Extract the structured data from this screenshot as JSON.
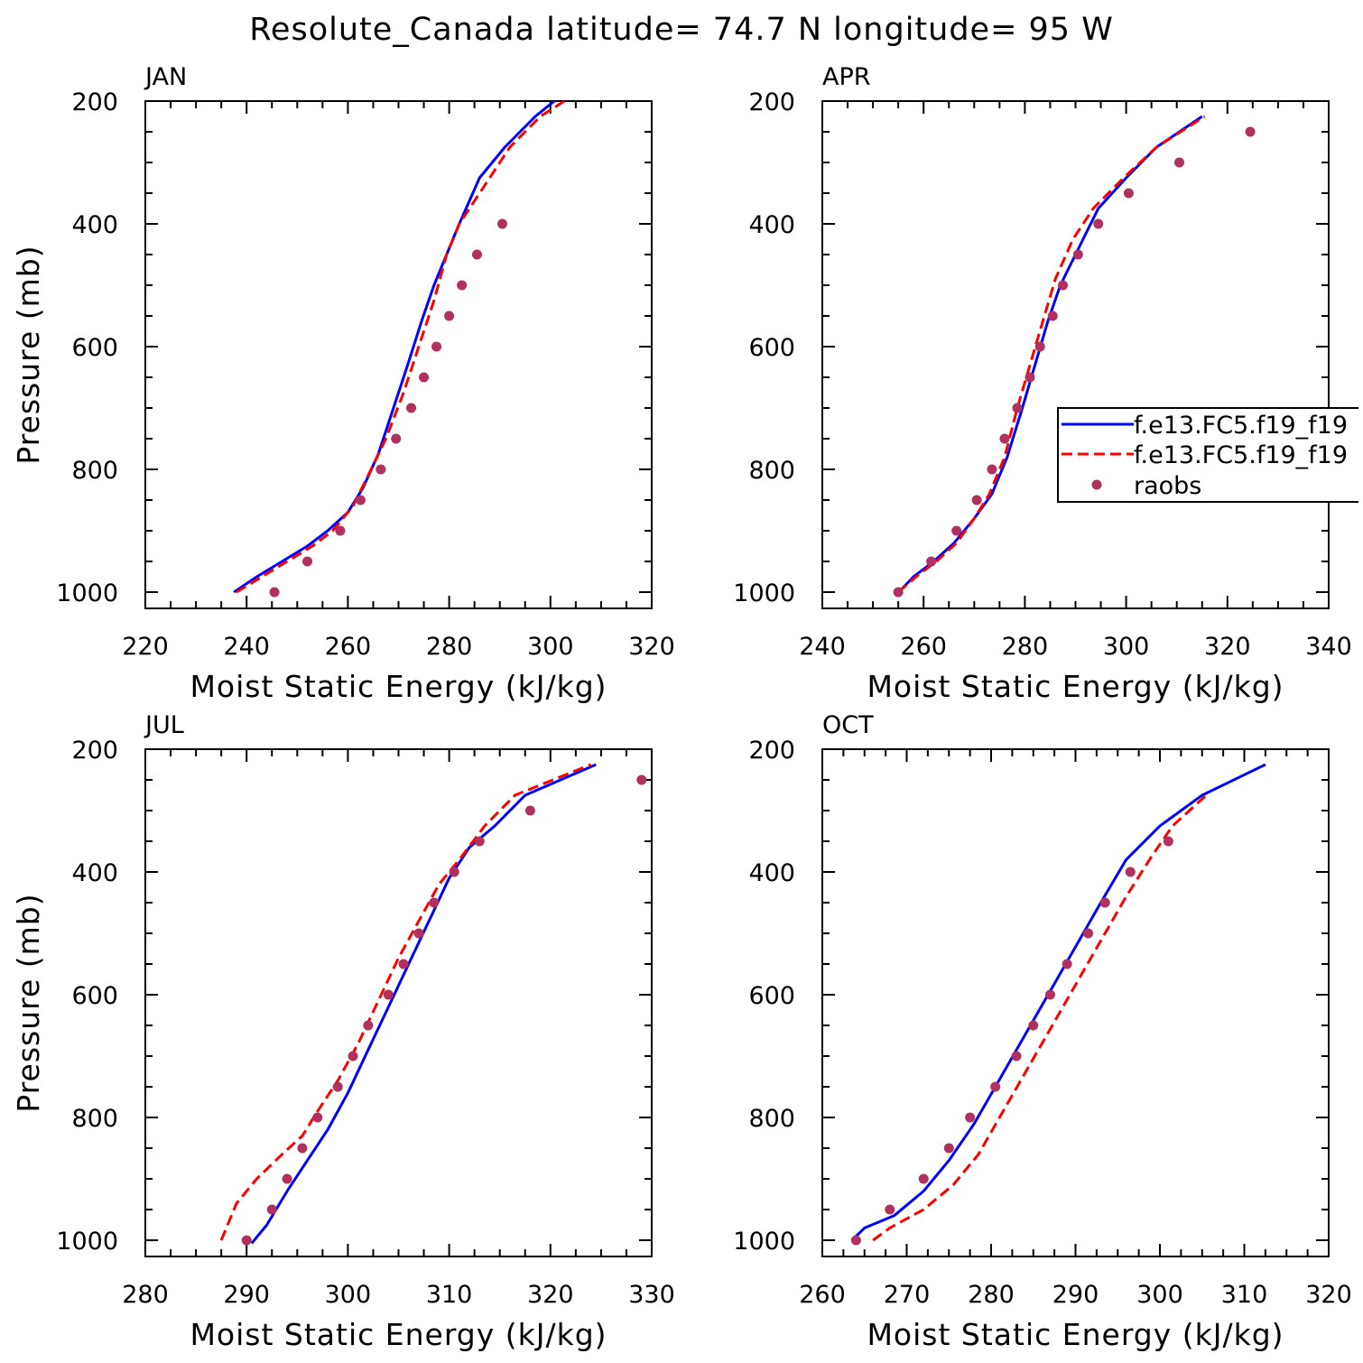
{
  "title": "Resolute_Canada  latitude= 74.7 N longitude= 95 W",
  "legend": {
    "entries": [
      {
        "label": "f.e13.FC5.f19_f19",
        "color": "#0000ff",
        "style": "solid"
      },
      {
        "label": "f.e13.FC5.f19_f19",
        "color": "#ff0000",
        "style": "dashed"
      },
      {
        "label": "raobs",
        "color": "#b03060",
        "style": "marker"
      }
    ]
  },
  "chart_data": [
    {
      "type": "line",
      "panel": "JAN",
      "xlabel": "Moist Static Energy (kJ/kg)",
      "ylabel": "Pressure (mb)",
      "xlim": [
        220,
        320
      ],
      "ylim": [
        1000,
        200
      ],
      "y_inverted": true,
      "xticks": [
        220,
        240,
        260,
        280,
        300,
        320
      ],
      "yticks": [
        200,
        400,
        600,
        800,
        1000
      ],
      "series": [
        {
          "name": "f.e13.FC5.f19_f19",
          "style": "solid",
          "color": "#0000ff",
          "x": [
            237.5,
            242,
            247,
            252,
            256,
            260,
            263,
            266,
            269,
            272,
            274.5,
            277,
            279.5,
            282,
            286,
            291,
            297,
            304.5
          ],
          "y": [
            1000,
            975,
            950,
            925,
            900,
            870,
            830,
            775,
            700,
            625,
            560,
            500,
            450,
            400,
            325,
            275,
            225,
            175
          ]
        },
        {
          "name": "f.e13.FC5.f19_f19",
          "style": "dashed",
          "color": "#ff0000",
          "x": [
            238,
            243,
            248,
            253,
            257,
            261,
            264,
            267.5,
            271,
            274,
            277,
            279.5,
            282,
            286,
            292,
            298,
            307.5
          ],
          "y": [
            1000,
            975,
            950,
            925,
            900,
            860,
            810,
            750,
            675,
            600,
            525,
            450,
            400,
            350,
            275,
            225,
            175
          ]
        },
        {
          "name": "raobs",
          "style": "marker",
          "color": "#b03060",
          "x": [
            245.5,
            252,
            258.5,
            262.5,
            266.5,
            269.5,
            272.5,
            275,
            277.5,
            280,
            282.5,
            285.5,
            290.5
          ],
          "y": [
            1000,
            950,
            900,
            850,
            800,
            750,
            700,
            650,
            600,
            550,
            500,
            450,
            400
          ]
        }
      ]
    },
    {
      "type": "line",
      "panel": "APR",
      "xlabel": "Moist Static Energy (kJ/kg)",
      "ylabel": "",
      "xlim": [
        240,
        340
      ],
      "ylim": [
        1000,
        200
      ],
      "y_inverted": true,
      "xticks": [
        240,
        260,
        280,
        300,
        320,
        340
      ],
      "yticks": [
        200,
        400,
        600,
        800,
        1000
      ],
      "series": [
        {
          "name": "f.e13.FC5.f19_f19",
          "style": "solid",
          "color": "#0000ff",
          "x": [
            254.5,
            258,
            262,
            266,
            270,
            273.5,
            276.5,
            279.5,
            282,
            284.5,
            287,
            290,
            294.5,
            300,
            306,
            315
          ],
          "y": [
            1005,
            975,
            950,
            920,
            880,
            840,
            780,
            700,
            630,
            560,
            500,
            450,
            375,
            325,
            275,
            225
          ]
        },
        {
          "name": "f.e13.FC5.f19_f19",
          "style": "dashed",
          "color": "#ff0000",
          "x": [
            255,
            258.5,
            262.5,
            266.5,
            270,
            273,
            276,
            278.5,
            281,
            283.5,
            286,
            289.5,
            293.5,
            299.5,
            306,
            315.5
          ],
          "y": [
            1000,
            975,
            950,
            920,
            880,
            840,
            780,
            700,
            630,
            560,
            490,
            425,
            375,
            325,
            275,
            225
          ]
        },
        {
          "name": "raobs",
          "style": "marker",
          "color": "#b03060",
          "x": [
            255,
            261.5,
            266.5,
            270.5,
            273.5,
            276,
            278.5,
            281,
            283,
            285.5,
            287.5,
            290.5,
            294.5,
            300.5,
            310.5,
            324.5
          ],
          "y": [
            1000,
            950,
            900,
            850,
            800,
            750,
            700,
            650,
            600,
            550,
            500,
            450,
            400,
            350,
            300,
            250
          ]
        }
      ]
    },
    {
      "type": "line",
      "panel": "JUL",
      "xlabel": "Moist Static Energy (kJ/kg)",
      "ylabel": "Pressure (mb)",
      "xlim": [
        280,
        330
      ],
      "ylim": [
        1000,
        200
      ],
      "y_inverted": true,
      "xticks": [
        280,
        290,
        300,
        310,
        320,
        330
      ],
      "yticks": [
        200,
        400,
        600,
        800,
        1000
      ],
      "series": [
        {
          "name": "f.e13.FC5.f19_f19",
          "style": "solid",
          "color": "#0000ff",
          "x": [
            290.5,
            292,
            294,
            296,
            298,
            300,
            302,
            304,
            306,
            308,
            310,
            312,
            314.5,
            317.5,
            324.5
          ],
          "y": [
            1005,
            975,
            920,
            870,
            820,
            760,
            690,
            620,
            550,
            480,
            410,
            360,
            325,
            275,
            225
          ]
        },
        {
          "name": "f.e13.FC5.f19_f19",
          "style": "dashed",
          "color": "#ff0000",
          "x": [
            287.5,
            289,
            291,
            293.5,
            295.5,
            297,
            299,
            301,
            303,
            305,
            307,
            309,
            311,
            313.5,
            316.5,
            324
          ],
          "y": [
            1000,
            940,
            900,
            860,
            830,
            790,
            740,
            680,
            610,
            540,
            480,
            420,
            380,
            325,
            275,
            225
          ]
        },
        {
          "name": "raobs",
          "style": "marker",
          "color": "#b03060",
          "x": [
            290,
            292.5,
            294,
            295.5,
            297,
            299,
            300.5,
            302,
            304,
            305.5,
            307,
            308.5,
            310.5,
            313,
            318,
            329
          ],
          "y": [
            1000,
            950,
            900,
            850,
            800,
            750,
            700,
            650,
            600,
            550,
            500,
            450,
            400,
            350,
            300,
            250
          ]
        }
      ]
    },
    {
      "type": "line",
      "panel": "OCT",
      "xlabel": "Moist Static Energy (kJ/kg)",
      "ylabel": "",
      "xlim": [
        260,
        320
      ],
      "ylim": [
        1000,
        200
      ],
      "y_inverted": true,
      "xticks": [
        260,
        270,
        280,
        290,
        300,
        310,
        320
      ],
      "yticks": [
        200,
        400,
        600,
        800,
        1000
      ],
      "series": [
        {
          "name": "f.e13.FC5.f19_f19",
          "style": "solid",
          "color": "#0000ff",
          "x": [
            263.5,
            265,
            268.5,
            272,
            275,
            278,
            280.5,
            283,
            285.5,
            288,
            290.5,
            293,
            296,
            300,
            305,
            312.5
          ],
          "y": [
            1000,
            980,
            960,
            920,
            870,
            810,
            750,
            690,
            630,
            570,
            510,
            450,
            380,
            325,
            275,
            225
          ]
        },
        {
          "name": "f.e13.FC5.f19_f19",
          "style": "dashed",
          "color": "#ff0000",
          "x": [
            266,
            268,
            272,
            275.5,
            278.5,
            281,
            283.5,
            286,
            288.5,
            291,
            293.5,
            296,
            299,
            301.5,
            305.5
          ],
          "y": [
            1000,
            980,
            950,
            910,
            860,
            800,
            740,
            680,
            620,
            560,
            500,
            440,
            375,
            325,
            275
          ]
        },
        {
          "name": "raobs",
          "style": "marker",
          "color": "#b03060",
          "x": [
            264,
            268,
            272,
            275,
            277.5,
            280.5,
            283,
            285,
            287,
            289,
            291.5,
            293.5,
            296.5,
            301
          ],
          "y": [
            1000,
            950,
            900,
            850,
            800,
            750,
            700,
            650,
            600,
            550,
            500,
            450,
            400,
            350
          ]
        }
      ]
    }
  ]
}
